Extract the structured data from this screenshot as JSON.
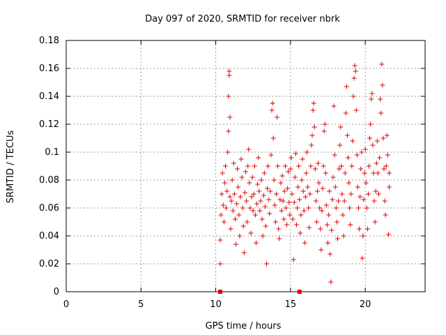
{
  "chart_data": {
    "type": "scatter",
    "title": "Day 097 of 2020, SRMTID for receiver nbrk",
    "xlabel": "GPS time / hours",
    "ylabel": "SRMTID / TECUs",
    "xlim": [
      0,
      24
    ],
    "ylim": [
      0,
      0.18
    ],
    "xticks": [
      0,
      5,
      10,
      15,
      20
    ],
    "xtick_labels": [
      "0",
      "5",
      "10",
      "15",
      "20"
    ],
    "yticks": [
      0,
      0.02,
      0.04,
      0.06,
      0.08,
      0.1,
      0.12,
      0.14,
      0.16,
      0.18
    ],
    "ytick_labels": [
      "0",
      "0.02",
      "0.04",
      "0.06",
      "0.08",
      "0.1",
      "0.12",
      "0.14",
      "0.16",
      "0.18"
    ],
    "grid": true,
    "marker": "plus",
    "color": "#e00000",
    "series": [
      {
        "values": [
          [
            10.3,
            0.02
          ],
          [
            10.3,
            0.037
          ],
          [
            10.35,
            0.055
          ],
          [
            10.4,
            0.07
          ],
          [
            10.45,
            0.085
          ],
          [
            10.5,
            0.062
          ],
          [
            10.55,
            0.05
          ],
          [
            10.6,
            0.078
          ],
          [
            10.65,
            0.09
          ],
          [
            10.7,
            0.06
          ],
          [
            10.75,
            0.072
          ],
          [
            10.8,
            0.1
          ],
          [
            10.85,
            0.115
          ],
          [
            10.85,
            0.14
          ],
          [
            10.9,
            0.155
          ],
          [
            10.9,
            0.158
          ],
          [
            10.95,
            0.125
          ],
          [
            10.95,
            0.068
          ],
          [
            11.0,
            0.045
          ],
          [
            11.05,
            0.065
          ],
          [
            11.1,
            0.08
          ],
          [
            11.15,
            0.058
          ],
          [
            11.2,
            0.092
          ],
          [
            11.25,
            0.07
          ],
          [
            11.3,
            0.052
          ],
          [
            11.35,
            0.034
          ],
          [
            11.4,
            0.063
          ],
          [
            11.45,
            0.088
          ],
          [
            11.5,
            0.075
          ],
          [
            11.55,
            0.055
          ],
          [
            11.6,
            0.04
          ],
          [
            11.65,
            0.068
          ],
          [
            11.7,
            0.095
          ],
          [
            11.75,
            0.082
          ],
          [
            11.8,
            0.06
          ],
          [
            11.85,
            0.047
          ],
          [
            11.9,
            0.028
          ],
          [
            11.95,
            0.071
          ],
          [
            12.0,
            0.086
          ],
          [
            12.05,
            0.065
          ],
          [
            12.1,
            0.05
          ],
          [
            12.15,
            0.09
          ],
          [
            12.2,
            0.102
          ],
          [
            12.25,
            0.078
          ],
          [
            12.3,
            0.06
          ],
          [
            12.35,
            0.042
          ],
          [
            12.4,
            0.068
          ],
          [
            12.45,
            0.082
          ],
          [
            12.5,
            0.058
          ],
          [
            12.55,
            0.07
          ],
          [
            12.6,
            0.09
          ],
          [
            12.65,
            0.055
          ],
          [
            12.7,
            0.035
          ],
          [
            12.75,
            0.063
          ],
          [
            12.8,
            0.077
          ],
          [
            12.85,
            0.096
          ],
          [
            12.9,
            0.072
          ],
          [
            12.95,
            0.058
          ],
          [
            13.0,
            0.065
          ],
          [
            13.05,
            0.08
          ],
          [
            13.1,
            0.052
          ],
          [
            13.15,
            0.04
          ],
          [
            13.2,
            0.069
          ],
          [
            13.25,
            0.085
          ],
          [
            13.3,
            0.061
          ],
          [
            13.35,
            0.047
          ],
          [
            13.4,
            0.02
          ],
          [
            13.45,
            0.074
          ],
          [
            13.5,
            0.09
          ],
          [
            13.55,
            0.066
          ],
          [
            13.6,
            0.056
          ],
          [
            13.65,
            0.072
          ],
          [
            13.7,
            0.098
          ],
          [
            13.75,
            0.13
          ],
          [
            13.8,
            0.135
          ],
          [
            13.85,
            0.11
          ],
          [
            13.9,
            0.08
          ],
          [
            13.95,
            0.062
          ],
          [
            14.0,
            0.05
          ],
          [
            14.05,
            0.07
          ],
          [
            14.1,
            0.125
          ],
          [
            14.15,
            0.09
          ],
          [
            14.2,
            0.045
          ],
          [
            14.25,
            0.038
          ],
          [
            14.3,
            0.066
          ],
          [
            14.35,
            0.078
          ],
          [
            14.4,
            0.058
          ],
          [
            14.45,
            0.083
          ],
          [
            14.5,
            0.065
          ],
          [
            14.55,
            0.052
          ],
          [
            14.6,
            0.072
          ],
          [
            14.65,
            0.09
          ],
          [
            14.7,
            0.06
          ],
          [
            14.75,
            0.048
          ],
          [
            14.8,
            0.074
          ],
          [
            14.85,
            0.086
          ],
          [
            14.9,
            0.064
          ],
          [
            14.95,
            0.055
          ],
          [
            15.0,
            0.088
          ],
          [
            15.05,
            0.096
          ],
          [
            15.1,
            0.07
          ],
          [
            15.15,
            0.052
          ],
          [
            15.2,
            0.023
          ],
          [
            15.25,
            0.064
          ],
          [
            15.3,
            0.082
          ],
          [
            15.35,
            0.099
          ],
          [
            15.4,
            0.048
          ],
          [
            15.45,
            0.06
          ],
          [
            15.5,
            0.075
          ],
          [
            15.55,
            0.09
          ],
          [
            15.6,
            0.066
          ],
          [
            15.65,
            0.042
          ],
          [
            15.7,
            0.055
          ],
          [
            15.75,
            0.08
          ],
          [
            15.8,
            0.095
          ],
          [
            15.85,
            0.072
          ],
          [
            15.9,
            0.058
          ],
          [
            15.95,
            0.035
          ],
          [
            16.0,
            0.068
          ],
          [
            16.05,
            0.085
          ],
          [
            16.1,
            0.1
          ],
          [
            16.15,
            0.075
          ],
          [
            16.2,
            0.06
          ],
          [
            16.25,
            0.046
          ],
          [
            16.3,
            0.07
          ],
          [
            16.35,
            0.09
          ],
          [
            16.4,
            0.105
          ],
          [
            16.45,
            0.112
          ],
          [
            16.5,
            0.13
          ],
          [
            16.55,
            0.135
          ],
          [
            16.6,
            0.118
          ],
          [
            16.65,
            0.088
          ],
          [
            16.7,
            0.065
          ],
          [
            16.75,
            0.05
          ],
          [
            16.8,
            0.072
          ],
          [
            16.85,
            0.092
          ],
          [
            16.9,
            0.078
          ],
          [
            16.95,
            0.06
          ],
          [
            17.0,
            0.045
          ],
          [
            17.05,
            0.03
          ],
          [
            17.1,
            0.058
          ],
          [
            17.15,
            0.074
          ],
          [
            17.2,
            0.09
          ],
          [
            17.25,
            0.115
          ],
          [
            17.3,
            0.12
          ],
          [
            17.35,
            0.085
          ],
          [
            17.4,
            0.062
          ],
          [
            17.45,
            0.048
          ],
          [
            17.5,
            0.035
          ],
          [
            17.55,
            0.055
          ],
          [
            17.6,
            0.072
          ],
          [
            17.65,
            0.027
          ],
          [
            17.7,
            0.007
          ],
          [
            17.75,
            0.044
          ],
          [
            17.8,
            0.066
          ],
          [
            17.85,
            0.082
          ],
          [
            17.9,
            0.133
          ],
          [
            17.95,
            0.098
          ],
          [
            18.0,
            0.075
          ],
          [
            18.05,
            0.06
          ],
          [
            18.1,
            0.05
          ],
          [
            18.15,
            0.038
          ],
          [
            18.2,
            0.065
          ],
          [
            18.25,
            0.088
          ],
          [
            18.3,
            0.105
          ],
          [
            18.35,
            0.118
          ],
          [
            18.4,
            0.09
          ],
          [
            18.45,
            0.07
          ],
          [
            18.5,
            0.055
          ],
          [
            18.55,
            0.04
          ],
          [
            18.6,
            0.065
          ],
          [
            18.65,
            0.085
          ],
          [
            18.7,
            0.128
          ],
          [
            18.75,
            0.147
          ],
          [
            18.8,
            0.112
          ],
          [
            18.85,
            0.096
          ],
          [
            18.9,
            0.078
          ],
          [
            18.95,
            0.06
          ],
          [
            19.0,
            0.048
          ],
          [
            19.05,
            0.07
          ],
          [
            19.1,
            0.09
          ],
          [
            19.15,
            0.108
          ],
          [
            19.2,
            0.14
          ],
          [
            19.25,
            0.153
          ],
          [
            19.3,
            0.162
          ],
          [
            19.35,
            0.158
          ],
          [
            19.4,
            0.13
          ],
          [
            19.45,
            0.098
          ],
          [
            19.5,
            0.075
          ],
          [
            19.55,
            0.06
          ],
          [
            19.6,
            0.045
          ],
          [
            19.65,
            0.068
          ],
          [
            19.7,
            0.088
          ],
          [
            19.75,
            0.1
          ],
          [
            19.8,
            0.024
          ],
          [
            19.85,
            0.04
          ],
          [
            19.9,
            0.066
          ],
          [
            19.95,
            0.085
          ],
          [
            20.0,
            0.102
          ],
          [
            20.05,
            0.078
          ],
          [
            20.1,
            0.06
          ],
          [
            20.15,
            0.045
          ],
          [
            20.2,
            0.07
          ],
          [
            20.25,
            0.09
          ],
          [
            20.3,
            0.11
          ],
          [
            20.35,
            0.12
          ],
          [
            20.4,
            0.138
          ],
          [
            20.45,
            0.142
          ],
          [
            20.5,
            0.105
          ],
          [
            20.55,
            0.085
          ],
          [
            20.6,
            0.065
          ],
          [
            20.65,
            0.05
          ],
          [
            20.7,
            0.072
          ],
          [
            20.75,
            0.092
          ],
          [
            20.8,
            0.108
          ],
          [
            20.85,
            0.085
          ],
          [
            20.9,
            0.07
          ],
          [
            20.95,
            0.096
          ],
          [
            21.0,
            0.138
          ],
          [
            21.05,
            0.128
          ],
          [
            21.1,
            0.163
          ],
          [
            21.15,
            0.148
          ],
          [
            21.2,
            0.11
          ],
          [
            21.25,
            0.088
          ],
          [
            21.3,
            0.065
          ],
          [
            21.35,
            0.055
          ],
          [
            21.4,
            0.09
          ],
          [
            21.45,
            0.112
          ],
          [
            21.5,
            0.098
          ],
          [
            21.55,
            0.041
          ],
          [
            21.6,
            0.075
          ],
          [
            21.6,
            0.085
          ]
        ]
      }
    ],
    "gap_markers_x": [
      10.3,
      15.6
    ]
  }
}
